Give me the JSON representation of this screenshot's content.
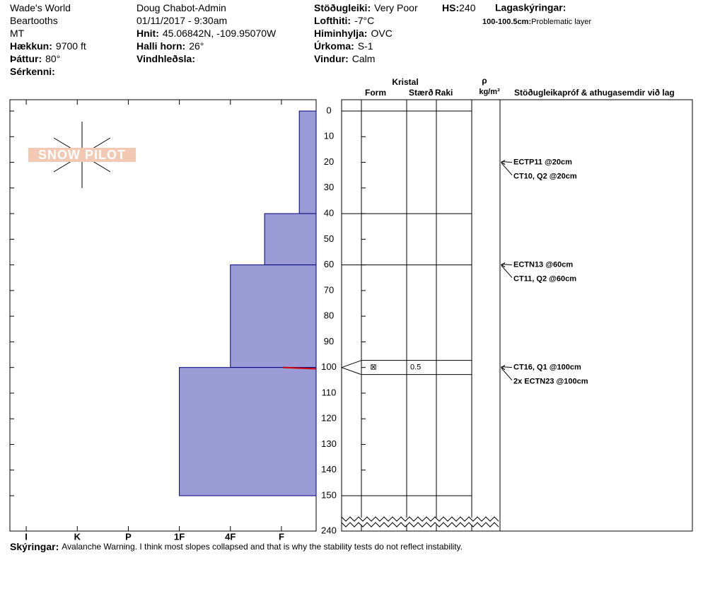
{
  "header": {
    "col1": [
      {
        "value": "Wade's World"
      },
      {
        "value": "Beartooths"
      },
      {
        "value": "MT"
      },
      {
        "label": "Hækkun:",
        "value": "9700 ft"
      },
      {
        "label": "Þáttur:",
        "value": "80°"
      },
      {
        "label": "Sérkenni:"
      }
    ],
    "col2": [
      {
        "value": "Doug Chabot-Admin"
      },
      {
        "value": "01/11/2017 - 9:30am"
      },
      {
        "label": "Hnit:",
        "value": "45.06842N, -109.95070W"
      },
      {
        "label": "Halli horn:",
        "value": "26°"
      },
      {
        "label": "Vindhleðsla:"
      }
    ],
    "col3": [
      {
        "label": "Stöðugleiki:",
        "value": "Very Poor"
      },
      {
        "label": "Lofthiti:",
        "value": "-7°C"
      },
      {
        "label": "Himinhylja:",
        "value": "OVC"
      },
      {
        "label": "Úrkoma:",
        "value": "S-1"
      },
      {
        "label": "Vindur:",
        "value": "Calm"
      }
    ],
    "hs": {
      "label": "HS:",
      "value": 240
    },
    "legend_title": "Lagaskýringar:",
    "legend_items": [
      {
        "label": "100-100.5cm:",
        "value": "Problematic layer"
      }
    ]
  },
  "logo": "SNOW PILOT",
  "columns": {
    "crystal": "Kristal",
    "form": "Form",
    "size": "Stærð",
    "moisture": "Raki",
    "rho": "ρ",
    "density_unit": "kg/m³",
    "tests": "Stöðugleikapróf & athugasemdir við lag"
  },
  "depth_lim": [
    0,
    150
  ],
  "depth_ticks": [
    0,
    10,
    20,
    30,
    40,
    50,
    60,
    70,
    80,
    90,
    100,
    110,
    120,
    130,
    140,
    150
  ],
  "depth_total": 240,
  "hardness_lim": [
    0.32,
    6.32
  ],
  "hardness_ticks": [
    {
      "value": 6,
      "label": "I"
    },
    {
      "value": 5,
      "label": "K"
    },
    {
      "value": 4,
      "label": "P"
    },
    {
      "value": 3,
      "label": "1F"
    },
    {
      "value": 2,
      "label": "4F"
    },
    {
      "value": 1,
      "label": "F"
    }
  ],
  "layers": [
    {
      "top": 0,
      "bottom": 40,
      "hardness": 0.65
    },
    {
      "top": 40,
      "bottom": 60,
      "hardness": 1.33
    },
    {
      "top": 60,
      "bottom": 100,
      "hardness": 2
    },
    {
      "top": 100,
      "bottom": 150,
      "hardness": 3
    }
  ],
  "problem_layer": {
    "top": 100,
    "bottom": 100.5
  },
  "crystals": [
    {
      "depth": 100,
      "form": "⊠",
      "size": "0.5"
    }
  ],
  "tests": [
    {
      "depth": 20,
      "label": "ECTP11 @20cm"
    },
    {
      "depth": 20,
      "label": "CT10, Q2 @20cm"
    },
    {
      "depth": 60,
      "label": "ECTN13 @60cm"
    },
    {
      "depth": 60,
      "label": "CT11, Q2 @60cm"
    },
    {
      "depth": 100,
      "label": "CT16, Q1 @100cm"
    },
    {
      "depth": 100,
      "label": "2x ECTN23 @100cm"
    }
  ],
  "footer": {
    "label": "Skýringar:",
    "value": "Avalanche Warning. I think most slopes collapsed and that is why the stability tests do not reflect instability."
  }
}
